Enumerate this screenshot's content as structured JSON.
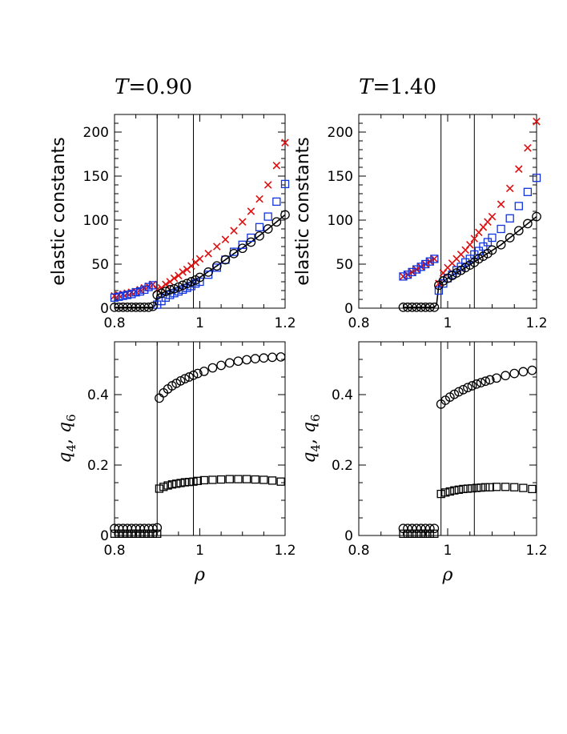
{
  "colors": {
    "sigma": "#dd1111",
    "shear": "#1133dd",
    "black": "#000000"
  },
  "chart_data": [
    {
      "type": "scatter",
      "panel": "top-left",
      "title_prefix": "T",
      "title_value": "=0.90",
      "ylabel": "elastic constants",
      "xlabel": "",
      "xlim": [
        0.8,
        1.2
      ],
      "ylim": [
        0,
        220
      ],
      "xticks": [
        "0.8",
        "1",
        "1.2"
      ],
      "yticks": [
        "0",
        "50",
        "100",
        "150",
        "200"
      ],
      "vlines": [
        0.9,
        0.985
      ],
      "series": [
        {
          "marker": "x",
          "color": "#dd1111",
          "x": [
            0.8,
            0.81,
            0.82,
            0.83,
            0.84,
            0.85,
            0.86,
            0.87,
            0.88,
            0.89,
            0.9,
            0.91,
            0.92,
            0.93,
            0.94,
            0.95,
            0.96,
            0.97,
            0.98,
            0.99,
            1.0,
            1.02,
            1.04,
            1.06,
            1.08,
            1.1,
            1.12,
            1.14,
            1.16,
            1.18,
            1.2
          ],
          "y": [
            14,
            15,
            16,
            17,
            18,
            19,
            21,
            23,
            25,
            27,
            21,
            23,
            27,
            30,
            34,
            37,
            41,
            44,
            48,
            52,
            56,
            62,
            70,
            78,
            88,
            98,
            110,
            124,
            140,
            162,
            188
          ]
        },
        {
          "marker": "square",
          "color": "#1133dd",
          "x": [
            0.8,
            0.81,
            0.82,
            0.83,
            0.84,
            0.85,
            0.86,
            0.87,
            0.88,
            0.89,
            0.9,
            0.91,
            0.92,
            0.93,
            0.94,
            0.95,
            0.96,
            0.97,
            0.98,
            0.99,
            1.0,
            1.02,
            1.04,
            1.06,
            1.08,
            1.1,
            1.12,
            1.14,
            1.16,
            1.18,
            1.2
          ],
          "y": [
            12,
            13,
            14,
            15,
            16,
            18,
            19,
            21,
            24,
            26,
            4,
            8,
            12,
            15,
            17,
            19,
            21,
            23,
            25,
            28,
            30,
            38,
            46,
            55,
            64,
            72,
            80,
            92,
            104,
            121,
            141
          ]
        },
        {
          "marker": "circle",
          "color": "#000000",
          "x": [
            0.8,
            0.81,
            0.82,
            0.83,
            0.84,
            0.85,
            0.86,
            0.87,
            0.88,
            0.89,
            0.9,
            0.91,
            0.92,
            0.93,
            0.94,
            0.95,
            0.96,
            0.97,
            0.98,
            0.99,
            1.0,
            1.02,
            1.04,
            1.06,
            1.08,
            1.1,
            1.12,
            1.14,
            1.16,
            1.18,
            1.2
          ],
          "y": [
            1,
            1,
            1,
            1,
            1,
            1,
            1,
            1,
            1,
            2,
            15,
            17,
            19,
            21,
            22,
            24,
            26,
            28,
            30,
            32,
            35,
            41,
            48,
            55,
            62,
            68,
            75,
            82,
            90,
            98,
            106
          ]
        }
      ],
      "curve": {
        "color": "#000000",
        "x": [
          0.8,
          0.89,
          0.895,
          0.9,
          0.92,
          0.94,
          0.96,
          0.98,
          1.0,
          1.04,
          1.08,
          1.12,
          1.16,
          1.2
        ],
        "y": [
          1,
          1,
          3,
          15,
          19,
          22,
          26,
          30,
          35,
          48,
          62,
          75,
          90,
          106
        ]
      }
    },
    {
      "type": "scatter",
      "panel": "top-right",
      "title_prefix": "T",
      "title_value": "=1.40",
      "ylabel": "elastic constants",
      "xlabel": "",
      "xlim": [
        0.8,
        1.2
      ],
      "ylim": [
        0,
        220
      ],
      "xticks": [
        "0.8",
        "1",
        "1.2"
      ],
      "yticks": [
        "0",
        "50",
        "100",
        "150",
        "200"
      ],
      "vlines": [
        0.985,
        1.06
      ],
      "series": [
        {
          "marker": "x",
          "color": "#dd1111",
          "x": [
            0.9,
            0.91,
            0.92,
            0.93,
            0.94,
            0.95,
            0.96,
            0.97,
            0.98,
            0.99,
            1.0,
            1.01,
            1.02,
            1.03,
            1.04,
            1.05,
            1.06,
            1.07,
            1.08,
            1.09,
            1.1,
            1.12,
            1.14,
            1.16,
            1.18,
            1.2
          ],
          "y": [
            36,
            38,
            41,
            44,
            47,
            50,
            53,
            56,
            28,
            40,
            46,
            51,
            56,
            61,
            66,
            72,
            79,
            86,
            92,
            98,
            104,
            118,
            136,
            158,
            182,
            212
          ]
        },
        {
          "marker": "square",
          "color": "#1133dd",
          "x": [
            0.9,
            0.91,
            0.92,
            0.93,
            0.94,
            0.95,
            0.96,
            0.97,
            0.98,
            0.99,
            1.0,
            1.01,
            1.02,
            1.03,
            1.04,
            1.05,
            1.06,
            1.07,
            1.08,
            1.09,
            1.1,
            1.12,
            1.14,
            1.16,
            1.18,
            1.2
          ],
          "y": [
            36,
            38,
            41,
            44,
            47,
            50,
            53,
            56,
            20,
            28,
            34,
            38,
            43,
            47,
            52,
            56,
            61,
            65,
            70,
            75,
            80,
            90,
            102,
            116,
            132,
            148
          ]
        },
        {
          "marker": "circle",
          "color": "#000000",
          "x": [
            0.9,
            0.91,
            0.92,
            0.93,
            0.94,
            0.95,
            0.96,
            0.97,
            0.98,
            0.99,
            1.0,
            1.01,
            1.02,
            1.03,
            1.04,
            1.05,
            1.06,
            1.07,
            1.08,
            1.09,
            1.1,
            1.12,
            1.14,
            1.16,
            1.18,
            1.2
          ],
          "y": [
            1,
            1,
            1,
            1,
            1,
            1,
            1,
            1,
            26,
            31,
            34,
            37,
            40,
            43,
            46,
            49,
            52,
            56,
            59,
            62,
            66,
            72,
            80,
            88,
            96,
            104
          ]
        }
      ],
      "curve": {
        "color": "#000000",
        "x": [
          0.9,
          0.97,
          0.975,
          0.98,
          1.0,
          1.04,
          1.08,
          1.12,
          1.16,
          1.2
        ],
        "y": [
          1,
          1,
          4,
          26,
          34,
          46,
          59,
          72,
          88,
          104
        ]
      }
    },
    {
      "type": "scatter",
      "panel": "bottom-left",
      "ylabel_parts": [
        "q",
        "4",
        ", ",
        "q",
        "6"
      ],
      "xlabel": "ρ",
      "xlim": [
        0.8,
        1.2
      ],
      "ylim": [
        0,
        0.55
      ],
      "xticks": [
        "0.8",
        "1",
        "1.2"
      ],
      "yticks": [
        "0",
        "0.2",
        "0.4"
      ],
      "vlines": [
        0.9,
        0.985
      ],
      "series": [
        {
          "marker": "circle",
          "color": "#000000",
          "x": [
            0.8,
            0.81,
            0.82,
            0.83,
            0.84,
            0.85,
            0.86,
            0.87,
            0.88,
            0.89,
            0.9,
            0.905,
            0.915,
            0.925,
            0.935,
            0.945,
            0.955,
            0.965,
            0.975,
            0.985,
            0.995,
            1.01,
            1.03,
            1.05,
            1.07,
            1.09,
            1.11,
            1.13,
            1.15,
            1.17,
            1.19
          ],
          "y": [
            0.02,
            0.02,
            0.02,
            0.02,
            0.02,
            0.02,
            0.02,
            0.02,
            0.02,
            0.02,
            0.022,
            0.39,
            0.405,
            0.416,
            0.425,
            0.432,
            0.439,
            0.445,
            0.45,
            0.455,
            0.46,
            0.466,
            0.476,
            0.483,
            0.49,
            0.495,
            0.499,
            0.502,
            0.504,
            0.506,
            0.507
          ]
        },
        {
          "marker": "square",
          "color": "#000000",
          "x": [
            0.8,
            0.81,
            0.82,
            0.83,
            0.84,
            0.85,
            0.86,
            0.87,
            0.88,
            0.89,
            0.9,
            0.905,
            0.915,
            0.925,
            0.935,
            0.945,
            0.955,
            0.965,
            0.975,
            0.985,
            0.995,
            1.01,
            1.03,
            1.05,
            1.07,
            1.09,
            1.11,
            1.13,
            1.15,
            1.17,
            1.19
          ],
          "y": [
            0.005,
            0.005,
            0.005,
            0.005,
            0.005,
            0.005,
            0.005,
            0.005,
            0.005,
            0.005,
            0.005,
            0.133,
            0.138,
            0.142,
            0.145,
            0.147,
            0.149,
            0.151,
            0.152,
            0.153,
            0.155,
            0.157,
            0.158,
            0.159,
            0.16,
            0.16,
            0.16,
            0.159,
            0.158,
            0.156,
            0.153
          ]
        }
      ]
    },
    {
      "type": "scatter",
      "panel": "bottom-right",
      "ylabel_parts": [
        "q",
        "4",
        ", ",
        "q",
        "6"
      ],
      "xlabel": "ρ",
      "xlim": [
        0.8,
        1.2
      ],
      "ylim": [
        0,
        0.55
      ],
      "xticks": [
        "0.8",
        "1",
        "1.2"
      ],
      "yticks": [
        "0",
        "0.2",
        "0.4"
      ],
      "vlines": [
        0.985,
        1.06
      ],
      "series": [
        {
          "marker": "circle",
          "color": "#000000",
          "x": [
            0.9,
            0.91,
            0.92,
            0.93,
            0.94,
            0.95,
            0.96,
            0.97,
            0.985,
            0.995,
            1.005,
            1.015,
            1.025,
            1.035,
            1.045,
            1.055,
            1.065,
            1.075,
            1.085,
            1.095,
            1.11,
            1.13,
            1.15,
            1.17,
            1.19
          ],
          "y": [
            0.02,
            0.02,
            0.02,
            0.02,
            0.02,
            0.02,
            0.02,
            0.02,
            0.373,
            0.384,
            0.393,
            0.401,
            0.408,
            0.414,
            0.42,
            0.425,
            0.43,
            0.434,
            0.438,
            0.442,
            0.447,
            0.454,
            0.46,
            0.465,
            0.469
          ]
        },
        {
          "marker": "square",
          "color": "#000000",
          "x": [
            0.9,
            0.91,
            0.92,
            0.93,
            0.94,
            0.95,
            0.96,
            0.97,
            0.985,
            0.995,
            1.005,
            1.015,
            1.025,
            1.035,
            1.045,
            1.055,
            1.065,
            1.075,
            1.085,
            1.095,
            1.11,
            1.13,
            1.15,
            1.17,
            1.19
          ],
          "y": [
            0.005,
            0.005,
            0.005,
            0.005,
            0.005,
            0.005,
            0.005,
            0.005,
            0.118,
            0.122,
            0.125,
            0.128,
            0.13,
            0.132,
            0.133,
            0.134,
            0.135,
            0.136,
            0.137,
            0.137,
            0.138,
            0.138,
            0.137,
            0.135,
            0.132
          ]
        }
      ]
    }
  ]
}
